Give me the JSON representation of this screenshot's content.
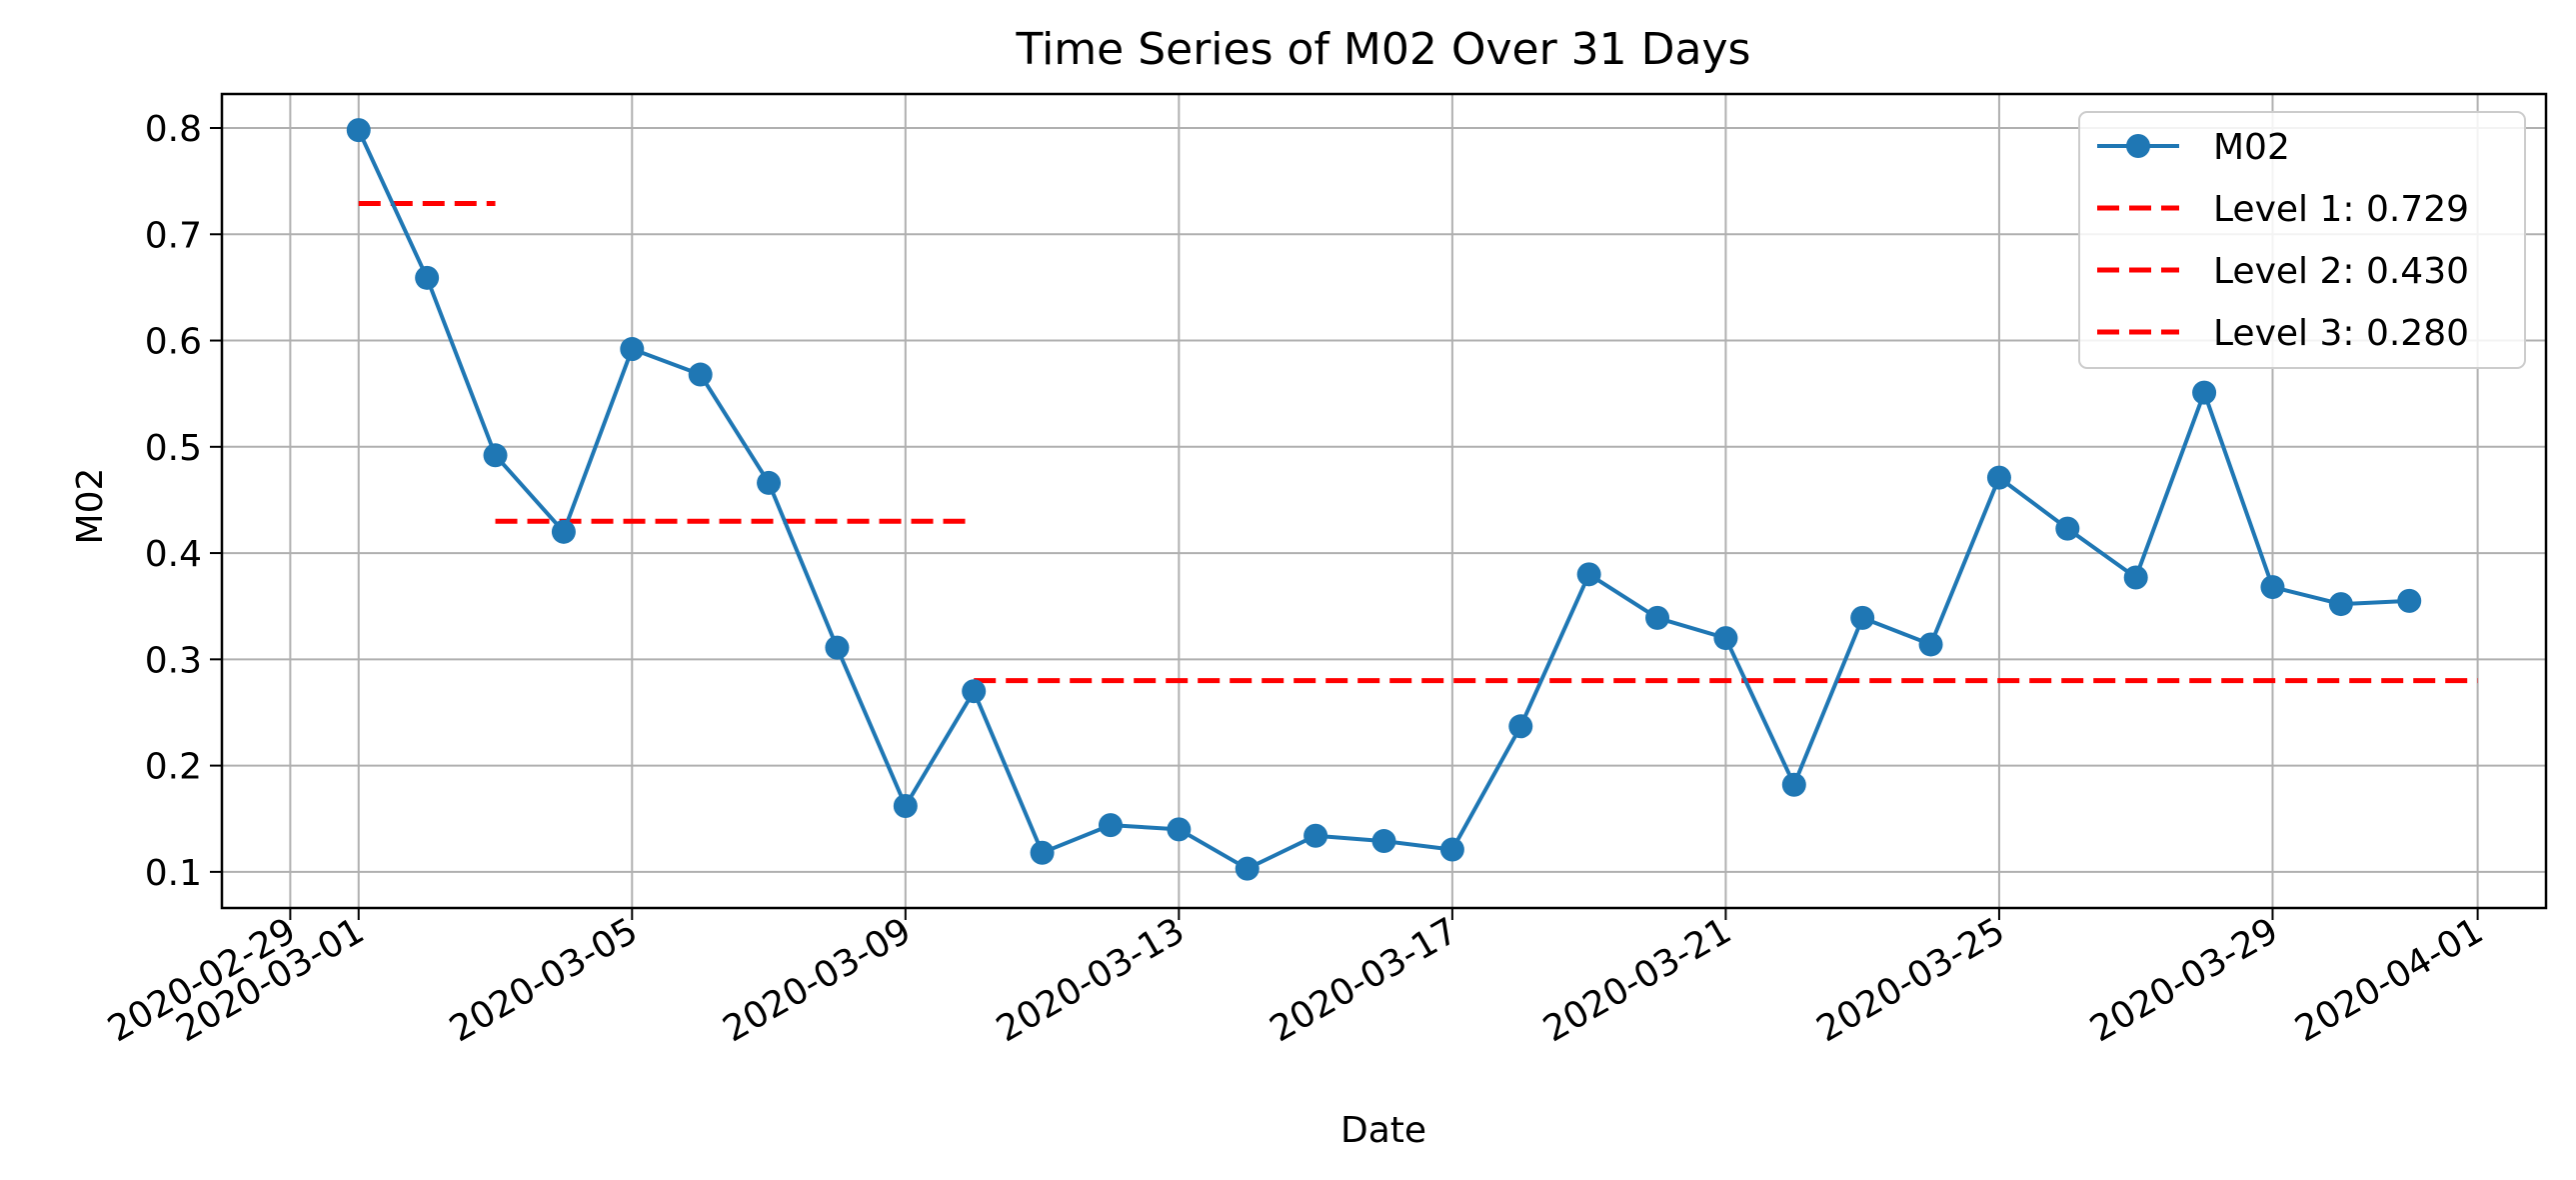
{
  "chart_data": {
    "type": "line",
    "title": "Time Series of M02 Over 31 Days",
    "xlabel": "Date",
    "ylabel": "M02",
    "x_tick_labels": [
      "2020-02-29",
      "2020-03-01",
      "2020-03-05",
      "2020-03-09",
      "2020-03-13",
      "2020-03-17",
      "2020-03-21",
      "2020-03-25",
      "2020-03-29",
      "2020-04-01"
    ],
    "y_tick_labels": [
      "0.1",
      "0.2",
      "0.3",
      "0.4",
      "0.5",
      "0.6",
      "0.7",
      "0.8"
    ],
    "xlim": [
      "2020-02-28",
      "2020-04-02"
    ],
    "ylim": [
      0.066,
      0.832
    ],
    "grid": true,
    "legend_position": "upper right",
    "colors": {
      "series": "#1f77b4",
      "levels": "#ff0000",
      "grid": "#b0b0b0"
    },
    "series": [
      {
        "name": "M02",
        "marker": "circle",
        "points": [
          {
            "x": "2020-03-01",
            "y": 0.798
          },
          {
            "x": "2020-03-02",
            "y": 0.659
          },
          {
            "x": "2020-03-03",
            "y": 0.492
          },
          {
            "x": "2020-03-04",
            "y": 0.42
          },
          {
            "x": "2020-03-05",
            "y": 0.592
          },
          {
            "x": "2020-03-06",
            "y": 0.568
          },
          {
            "x": "2020-03-07",
            "y": 0.466
          },
          {
            "x": "2020-03-08",
            "y": 0.311
          },
          {
            "x": "2020-03-09",
            "y": 0.162
          },
          {
            "x": "2020-03-10",
            "y": 0.27
          },
          {
            "x": "2020-03-11",
            "y": 0.118
          },
          {
            "x": "2020-03-12",
            "y": 0.144
          },
          {
            "x": "2020-03-13",
            "y": 0.14
          },
          {
            "x": "2020-03-14",
            "y": 0.103
          },
          {
            "x": "2020-03-15",
            "y": 0.134
          },
          {
            "x": "2020-03-16",
            "y": 0.129
          },
          {
            "x": "2020-03-17",
            "y": 0.121
          },
          {
            "x": "2020-03-18",
            "y": 0.237
          },
          {
            "x": "2020-03-19",
            "y": 0.38
          },
          {
            "x": "2020-03-20",
            "y": 0.339
          },
          {
            "x": "2020-03-21",
            "y": 0.32
          },
          {
            "x": "2020-03-22",
            "y": 0.182
          },
          {
            "x": "2020-03-23",
            "y": 0.339
          },
          {
            "x": "2020-03-24",
            "y": 0.314
          },
          {
            "x": "2020-03-25",
            "y": 0.471
          },
          {
            "x": "2020-03-26",
            "y": 0.423
          },
          {
            "x": "2020-03-27",
            "y": 0.377
          },
          {
            "x": "2020-03-28",
            "y": 0.551
          },
          {
            "x": "2020-03-29",
            "y": 0.368
          },
          {
            "x": "2020-03-30",
            "y": 0.352
          },
          {
            "x": "2020-03-31",
            "y": 0.355
          }
        ]
      }
    ],
    "levels": [
      {
        "name": "Level 1: 0.729",
        "value": 0.729,
        "x_start": "2020-03-01",
        "x_end": "2020-03-03"
      },
      {
        "name": "Level 2: 0.430",
        "value": 0.43,
        "x_start": "2020-03-03",
        "x_end": "2020-03-10"
      },
      {
        "name": "Level 3: 0.280",
        "value": 0.28,
        "x_start": "2020-03-10",
        "x_end": "2020-04-01"
      }
    ]
  }
}
